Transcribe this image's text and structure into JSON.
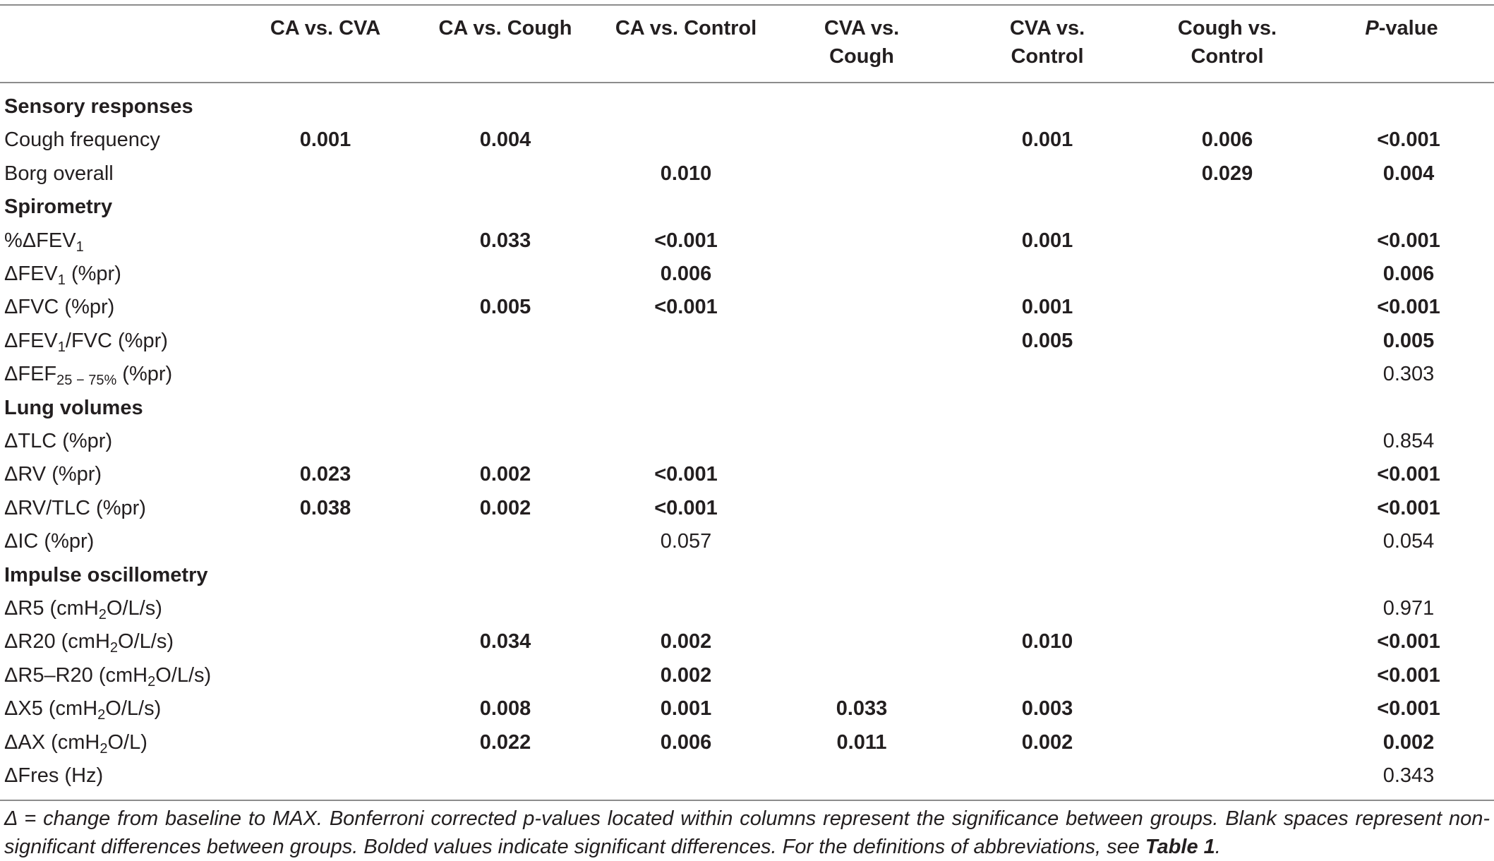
{
  "headers": {
    "c1": [
      "CA vs. CVA"
    ],
    "c2": [
      "CA vs. Cough"
    ],
    "c3": [
      "CA vs. Control"
    ],
    "c4": [
      "CVA vs.",
      "Cough"
    ],
    "c5": [
      "CVA vs.",
      "Control"
    ],
    "c6": [
      "Cough vs.",
      "Control"
    ],
    "p_italic": "P",
    "p_rest": "-value"
  },
  "rows": [
    {
      "type": "section",
      "label": "Sensory responses"
    },
    {
      "type": "data",
      "label": "Cough frequency",
      "cells": [
        {
          "col": 1,
          "text": "0.001",
          "bold": true
        },
        {
          "col": 2,
          "text": "0.004",
          "bold": true
        },
        {
          "col": 5,
          "text": "0.001",
          "bold": true
        },
        {
          "col": 6,
          "text": "0.006",
          "bold": true
        },
        {
          "col": 7,
          "text": "<0.001",
          "bold": true
        }
      ]
    },
    {
      "type": "data",
      "label": "Borg overall",
      "cells": [
        {
          "col": 3,
          "text": "0.010",
          "bold": true
        },
        {
          "col": 6,
          "text": "0.029",
          "bold": true
        },
        {
          "col": 7,
          "text": "0.004",
          "bold": true
        }
      ]
    },
    {
      "type": "section",
      "label": "Spirometry"
    },
    {
      "type": "data",
      "label": "%ΔFEV",
      "sub": "1",
      "after": "",
      "cells": [
        {
          "col": 2,
          "text": "0.033",
          "bold": true
        },
        {
          "col": 3,
          "text": "<0.001",
          "bold": true
        },
        {
          "col": 5,
          "text": "0.001",
          "bold": true
        },
        {
          "col": 7,
          "text": "<0.001",
          "bold": true
        }
      ]
    },
    {
      "type": "data",
      "label": "ΔFEV",
      "sub": "1",
      "after": " (%pr)",
      "cells": [
        {
          "col": 3,
          "text": "0.006",
          "bold": true
        },
        {
          "col": 7,
          "text": "0.006",
          "bold": true
        }
      ]
    },
    {
      "type": "data",
      "label": "ΔFVC (%pr)",
      "cells": [
        {
          "col": 2,
          "text": "0.005",
          "bold": true
        },
        {
          "col": 3,
          "text": "<0.001",
          "bold": true
        },
        {
          "col": 5,
          "text": "0.001",
          "bold": true
        },
        {
          "col": 7,
          "text": "<0.001",
          "bold": true
        }
      ]
    },
    {
      "type": "data",
      "label": "ΔFEV",
      "sub": "1",
      "after": "/FVC (%pr)",
      "cells": [
        {
          "col": 5,
          "text": "0.005",
          "bold": true
        },
        {
          "col": 7,
          "text": "0.005",
          "bold": true
        }
      ]
    },
    {
      "type": "data",
      "label": "ΔFEF",
      "sub": "25 − 75%",
      "after": " (%pr)",
      "cells": [
        {
          "col": 7,
          "text": "0.303",
          "bold": false
        }
      ]
    },
    {
      "type": "section",
      "label": "Lung volumes"
    },
    {
      "type": "data",
      "label": "ΔTLC (%pr)",
      "cells": [
        {
          "col": 7,
          "text": "0.854",
          "bold": false
        }
      ]
    },
    {
      "type": "data",
      "label": "ΔRV (%pr)",
      "cells": [
        {
          "col": 1,
          "text": "0.023",
          "bold": true
        },
        {
          "col": 2,
          "text": "0.002",
          "bold": true
        },
        {
          "col": 3,
          "text": "<0.001",
          "bold": true
        },
        {
          "col": 7,
          "text": "<0.001",
          "bold": true
        }
      ]
    },
    {
      "type": "data",
      "label": "ΔRV/TLC (%pr)",
      "cells": [
        {
          "col": 1,
          "text": "0.038",
          "bold": true
        },
        {
          "col": 2,
          "text": "0.002",
          "bold": true
        },
        {
          "col": 3,
          "text": "<0.001",
          "bold": true
        },
        {
          "col": 7,
          "text": "<0.001",
          "bold": true
        }
      ]
    },
    {
      "type": "data",
      "label": "ΔIC (%pr)",
      "cells": [
        {
          "col": 3,
          "text": "0.057",
          "bold": false
        },
        {
          "col": 7,
          "text": "0.054",
          "bold": false
        }
      ]
    },
    {
      "type": "section",
      "label": "Impulse oscillometry"
    },
    {
      "type": "data",
      "label": "ΔR5 (cmH",
      "sub": "2",
      "after": "O/L/s)",
      "cells": [
        {
          "col": 7,
          "text": "0.971",
          "bold": false
        }
      ]
    },
    {
      "type": "data",
      "label": "ΔR20 (cmH",
      "sub": "2",
      "after": "O/L/s)",
      "cells": [
        {
          "col": 2,
          "text": "0.034",
          "bold": true
        },
        {
          "col": 3,
          "text": "0.002",
          "bold": true
        },
        {
          "col": 5,
          "text": "0.010",
          "bold": true
        },
        {
          "col": 7,
          "text": "<0.001",
          "bold": true
        }
      ]
    },
    {
      "type": "data",
      "label": "ΔR5–R20 (cmH",
      "sub": "2",
      "after": "O/L/s)",
      "cells": [
        {
          "col": 3,
          "text": "0.002",
          "bold": true
        },
        {
          "col": 7,
          "text": "<0.001",
          "bold": true
        }
      ]
    },
    {
      "type": "data",
      "label": "ΔX5 (cmH",
      "sub": "2",
      "after": "O/L/s)",
      "cells": [
        {
          "col": 2,
          "text": "0.008",
          "bold": true
        },
        {
          "col": 3,
          "text": "0.001",
          "bold": true
        },
        {
          "col": 4,
          "text": "0.033",
          "bold": true
        },
        {
          "col": 5,
          "text": "0.003",
          "bold": true
        },
        {
          "col": 7,
          "text": "<0.001",
          "bold": true
        }
      ]
    },
    {
      "type": "data",
      "label": "ΔAX (cmH",
      "sub": "2",
      "after": "O/L)",
      "cells": [
        {
          "col": 2,
          "text": "0.022",
          "bold": true
        },
        {
          "col": 3,
          "text": "0.006",
          "bold": true
        },
        {
          "col": 4,
          "text": "0.011",
          "bold": true
        },
        {
          "col": 5,
          "text": "0.002",
          "bold": true
        },
        {
          "col": 7,
          "text": "0.002",
          "bold": true
        }
      ]
    },
    {
      "type": "data",
      "label": "ΔFres (Hz)",
      "cells": [
        {
          "col": 7,
          "text": "0.343",
          "bold": false
        }
      ]
    }
  ],
  "footnote": {
    "text": "Δ = change from baseline to MAX. Bonferroni corrected p-values located within columns represent the significance between groups. Blank spaces represent non-significant differences between groups. Bolded values indicate significant differences. For the definitions of abbreviations, see ",
    "ref": "Table 1",
    "end": "."
  }
}
